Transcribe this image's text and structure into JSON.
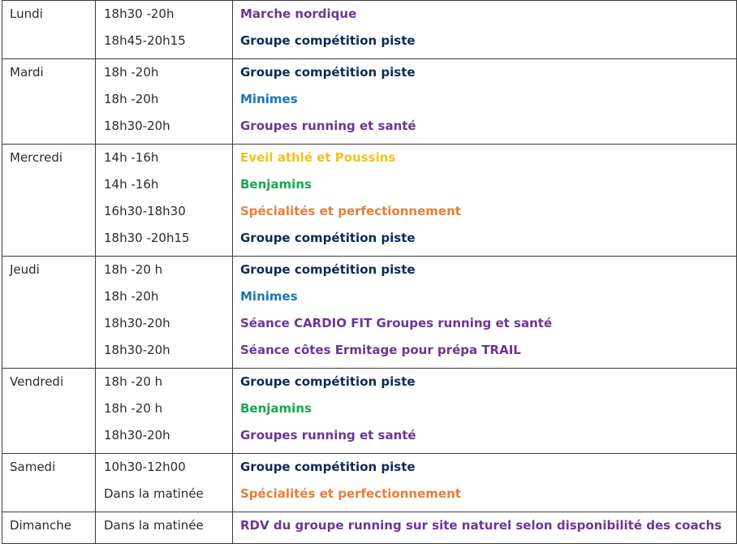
{
  "colors": {
    "navy": "#0d2b57",
    "purple": "#6e3596",
    "blue": "#1a76b8",
    "yellow": "#efc31a",
    "green": "#19a84d",
    "orange": "#e57e3a"
  },
  "days": [
    {
      "day": "Lundi",
      "rows": [
        {
          "time": "18h30 -20h",
          "activity": "Marche nordique",
          "color": "purple"
        },
        {
          "time": "18h45-20h15",
          "activity": "Groupe compétition piste",
          "color": "navy"
        }
      ]
    },
    {
      "day": "Mardi",
      "rows": [
        {
          "time": "18h -20h",
          "activity": "Groupe compétition piste",
          "color": "navy"
        },
        {
          "time": "18h -20h",
          "activity": "Minimes",
          "color": "blue"
        },
        {
          "time": "18h30-20h",
          "activity": "Groupes running et santé",
          "color": "purple"
        }
      ]
    },
    {
      "day": "Mercredi",
      "rows": [
        {
          "time": "14h -16h",
          "activity": "Eveil athlé et Poussins",
          "color": "yellow"
        },
        {
          "time": "14h -16h",
          "activity": "Benjamins",
          "color": "green"
        },
        {
          "time": "16h30-18h30",
          "activity": "Spécialités et perfectionnement",
          "color": "orange"
        },
        {
          "time": "18h30 -20h15",
          "activity": "Groupe compétition piste",
          "color": "navy"
        }
      ]
    },
    {
      "day": "Jeudi",
      "rows": [
        {
          "time": "18h -20 h",
          "activity": "Groupe compétition piste",
          "color": "navy"
        },
        {
          "time": "18h -20h",
          "activity": "Minimes",
          "color": "blue"
        },
        {
          "time": "18h30-20h",
          "activity": "Séance CARDIO FIT Groupes running et santé",
          "color": "purple"
        },
        {
          "time": "18h30-20h",
          "activity": "Séance côtes Ermitage pour prépa TRAIL",
          "color": "purple"
        }
      ]
    },
    {
      "day": "Vendredi",
      "rows": [
        {
          "time": "18h -20 h",
          "activity": "Groupe compétition piste",
          "color": "navy"
        },
        {
          "time": "18h -20 h",
          "activity": "Benjamins",
          "color": "green"
        },
        {
          "time": "18h30-20h",
          "activity": "Groupes running et santé",
          "color": "purple"
        }
      ]
    },
    {
      "day": "Samedi",
      "rows": [
        {
          "time": "10h30-12h00",
          "activity": "Groupe compétition piste",
          "color": "navy"
        },
        {
          "time": "Dans la matinée",
          "activity": "Spécialités et perfectionnement",
          "color": "orange"
        }
      ]
    },
    {
      "day": "Dimanche",
      "rows": [
        {
          "time": "Dans la matinée",
          "activity": "RDV du groupe running sur site naturel selon disponibilité des coachs",
          "color": "purple"
        }
      ]
    }
  ]
}
